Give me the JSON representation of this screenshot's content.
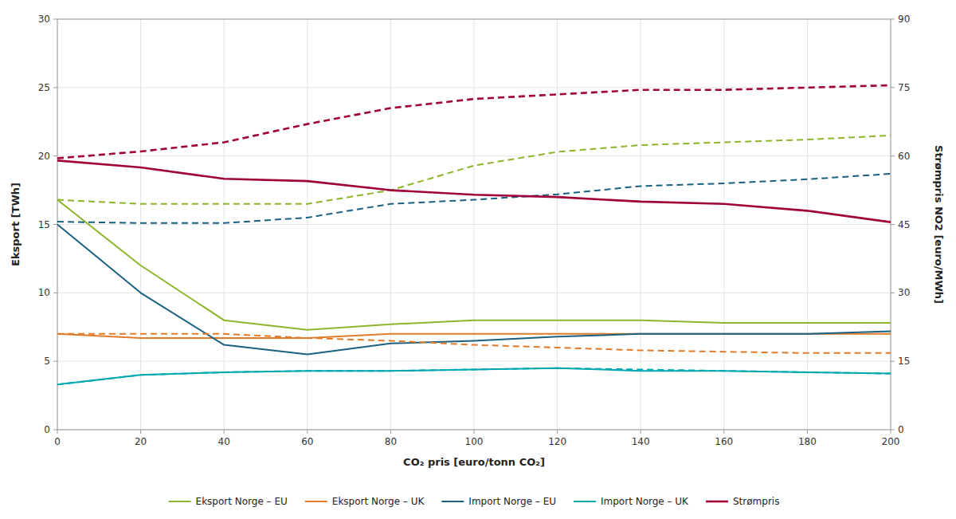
{
  "chart_data": {
    "type": "line",
    "x_label": "CO₂ pris [euro/tonn CO₂]",
    "y_label": "Eksport [TWh]",
    "y2_label": "Strømpris NO2 [euro/MWh]",
    "x": [
      0,
      20,
      40,
      60,
      80,
      100,
      120,
      140,
      160,
      180,
      200
    ],
    "xlim": [
      0,
      200
    ],
    "xticks": [
      0,
      20,
      40,
      60,
      80,
      100,
      120,
      140,
      160,
      180,
      200
    ],
    "ylim": [
      0,
      30
    ],
    "yticks": [
      0,
      5,
      10,
      15,
      20,
      25,
      30
    ],
    "y2lim": [
      0,
      90
    ],
    "y2ticks": [
      0,
      15,
      30,
      45,
      60,
      75,
      90
    ],
    "grid": true,
    "legend": "bottom",
    "series": [
      {
        "name": "Eksport Norge – EU",
        "color": "#8db52a",
        "line_style": "solid",
        "values": [
          16.8,
          12.0,
          8.0,
          7.3,
          7.7,
          8.0,
          8.0,
          8.0,
          7.8,
          7.8,
          7.8
        ]
      },
      {
        "name": "Eksport Norge – UK",
        "color": "#e07b2a",
        "line_style": "solid",
        "values": [
          7.0,
          6.7,
          6.7,
          6.7,
          7.0,
          7.0,
          7.0,
          7.0,
          7.0,
          7.0,
          7.0
        ]
      },
      {
        "name": "Import Norge – EU",
        "color": "#1a6080",
        "line_style": "solid",
        "values": [
          15.0,
          10.0,
          6.2,
          5.5,
          6.3,
          6.5,
          6.8,
          7.0,
          7.0,
          7.0,
          7.2
        ]
      },
      {
        "name": "Import Norge – UK",
        "color": "#00a8b0",
        "line_style": "solid",
        "values": [
          3.3,
          4.0,
          4.2,
          4.3,
          4.3,
          4.4,
          4.5,
          4.3,
          4.3,
          4.2,
          4.1
        ]
      },
      {
        "color": "#8db52a",
        "line_style": "dashed",
        "values": [
          16.8,
          16.5,
          16.5,
          16.5,
          17.5,
          19.3,
          20.3,
          20.8,
          21.0,
          21.2,
          21.5
        ]
      },
      {
        "color": "#e07b2a",
        "line_style": "dashed",
        "values": [
          7.0,
          7.0,
          7.0,
          6.7,
          6.5,
          6.2,
          6.0,
          5.8,
          5.7,
          5.6,
          5.6
        ]
      },
      {
        "color": "#1a6080",
        "line_style": "dashed",
        "values": [
          15.2,
          15.1,
          15.1,
          15.5,
          16.5,
          16.8,
          17.2,
          17.8,
          18.0,
          18.3,
          18.7
        ]
      },
      {
        "color": "#00a8b0",
        "line_style": "dashed",
        "values": [
          3.3,
          4.0,
          4.2,
          4.3,
          4.3,
          4.4,
          4.5,
          4.4,
          4.3,
          4.2,
          4.1
        ]
      },
      {
        "name": "Strømpris",
        "color": "#a0003c",
        "line_style": "solid",
        "axis": "y2",
        "values": [
          59.0,
          57.5,
          55.0,
          54.5,
          52.5,
          51.5,
          51.0,
          50.0,
          49.5,
          48.0,
          45.5
        ]
      },
      {
        "color": "#a0003c",
        "line_style": "dashed",
        "axis": "y2",
        "values": [
          59.5,
          61.0,
          63.0,
          67.0,
          70.5,
          72.5,
          73.5,
          74.5,
          74.5,
          75.0,
          75.5
        ]
      }
    ]
  }
}
